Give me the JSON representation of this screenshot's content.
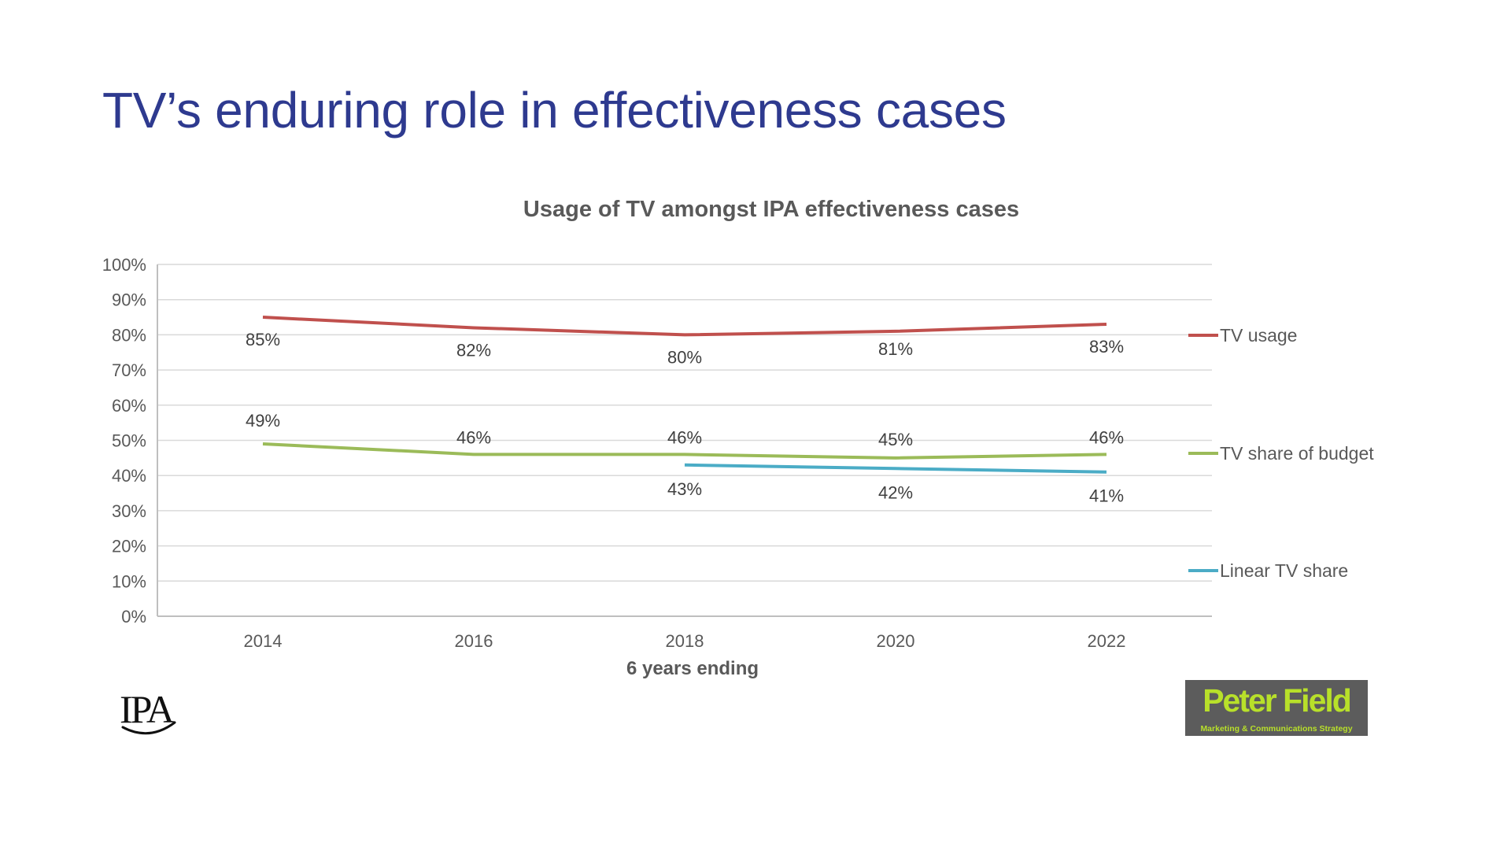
{
  "slide": {
    "title": "TV’s enduring role in effectiveness cases"
  },
  "logos": {
    "ipa": "IPA",
    "peter_field_name": "Peter Field",
    "peter_field_tagline": "Marketing & Communications Strategy"
  },
  "colors": {
    "title": "#2e3a8f",
    "tv_usage": "#c0504d",
    "tv_share_of_budget": "#9bbb59",
    "linear_tv_share": "#4bacc6"
  },
  "chart_data": {
    "type": "line",
    "title": "Usage of TV amongst IPA effectiveness cases",
    "xlabel": "6 years ending",
    "ylabel": "",
    "categories": [
      "2014",
      "2016",
      "2018",
      "2020",
      "2022"
    ],
    "ylim": [
      0,
      100
    ],
    "yticks": [
      "0%",
      "10%",
      "20%",
      "30%",
      "40%",
      "50%",
      "60%",
      "70%",
      "80%",
      "90%",
      "100%"
    ],
    "grid": true,
    "legend_position": "right",
    "series": [
      {
        "name": "TV usage",
        "color": "#c0504d",
        "values": [
          85,
          82,
          80,
          81,
          83
        ],
        "labels": [
          "85%",
          "82%",
          "80%",
          "81%",
          "83%"
        ]
      },
      {
        "name": "TV share of budget",
        "color": "#9bbb59",
        "values": [
          49,
          46,
          46,
          45,
          46
        ],
        "labels": [
          "49%",
          "46%",
          "46%",
          "45%",
          "46%"
        ]
      },
      {
        "name": "Linear TV share",
        "color": "#4bacc6",
        "values": [
          null,
          null,
          43,
          42,
          41
        ],
        "labels": [
          null,
          null,
          "43%",
          "42%",
          "41%"
        ]
      }
    ]
  }
}
